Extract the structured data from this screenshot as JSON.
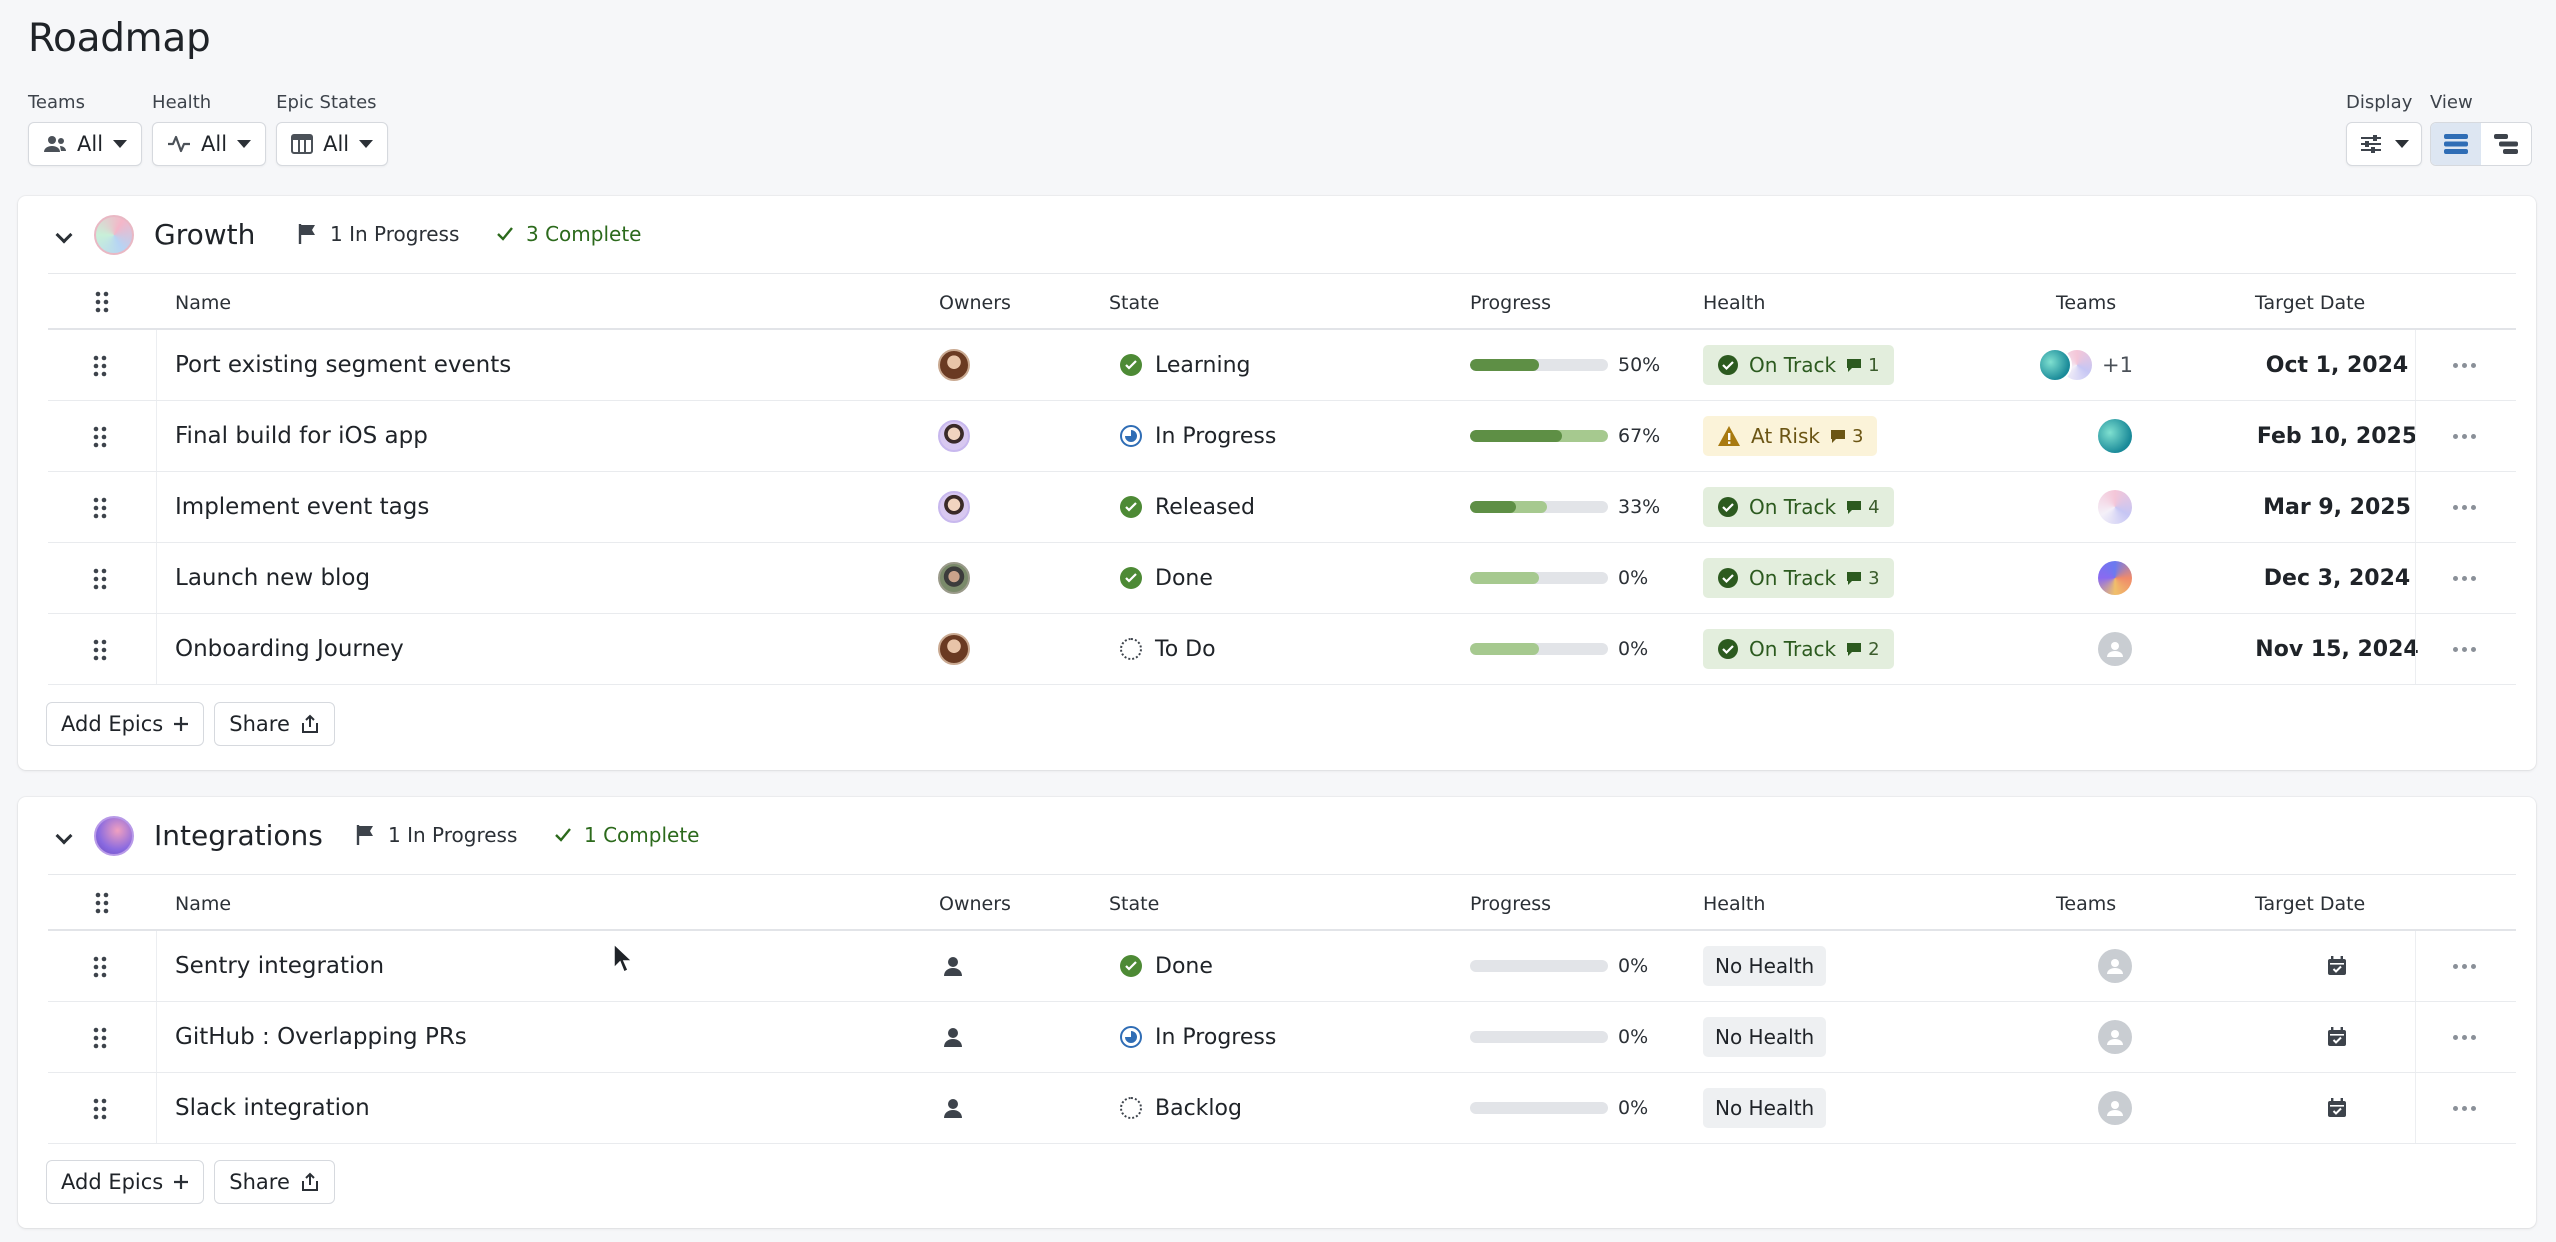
{
  "page": {
    "title": "Roadmap"
  },
  "filters": [
    {
      "label": "Teams",
      "value": "All",
      "icon": "teams-icon"
    },
    {
      "label": "Health",
      "value": "All",
      "icon": "pulse-icon"
    },
    {
      "label": "Epic States",
      "value": "All",
      "icon": "board-icon"
    }
  ],
  "controls": {
    "display_label": "Display",
    "view_label": "View"
  },
  "columns": {
    "name": "Name",
    "owners": "Owners",
    "state": "State",
    "progress": "Progress",
    "health": "Health",
    "teams": "Teams",
    "target_date": "Target Date"
  },
  "groups": [
    {
      "name": "Growth",
      "in_progress": "1 In Progress",
      "complete": "3 Complete",
      "epics": [
        {
          "name": "Port existing segment events",
          "owner": "woman-avatar",
          "state": "Learning",
          "state_icon": "check-circle-icon",
          "progress": 50,
          "progress_label": "50%",
          "health": "On Track",
          "comments": "1",
          "teams_extra": "+1",
          "target_date": "Oct 1, 2024"
        },
        {
          "name": "Final build for iOS app",
          "owner": "man-avatar",
          "state": "In Progress",
          "state_icon": "in-progress-icon",
          "progress": 67,
          "progress_label": "67%",
          "health": "At Risk",
          "comments": "3",
          "target_date": "Feb 10, 2025"
        },
        {
          "name": "Implement event tags",
          "owner": "man-avatar",
          "state": "Released",
          "state_icon": "check-circle-icon",
          "progress": 33,
          "progress_label": "33%",
          "health": "On Track",
          "comments": "4",
          "target_date": "Mar 9, 2025"
        },
        {
          "name": "Launch new blog",
          "owner": "man-photo-avatar",
          "state": "Done",
          "state_icon": "check-circle-icon",
          "progress": 0,
          "progress_label": "0%",
          "health": "On Track",
          "comments": "3",
          "target_date": "Dec 3, 2024"
        },
        {
          "name": "Onboarding Journey",
          "owner": "woman-avatar",
          "state": "To Do",
          "state_icon": "todo-icon",
          "progress": 0,
          "progress_label": "0%",
          "health": "On Track",
          "comments": "2",
          "target_date": "Nov 15, 2024"
        }
      ],
      "add_label": "Add Epics",
      "share_label": "Share"
    },
    {
      "name": "Integrations",
      "in_progress": "1 In Progress",
      "complete": "1 Complete",
      "epics": [
        {
          "name": "Sentry integration",
          "state": "Done",
          "state_icon": "check-circle-icon",
          "progress": 0,
          "progress_label": "0%",
          "health": "No Health"
        },
        {
          "name": "GitHub : Overlapping PRs",
          "state": "In Progress",
          "state_icon": "in-progress-icon",
          "progress": 0,
          "progress_label": "0%",
          "health": "No Health"
        },
        {
          "name": "Slack integration",
          "state": "Backlog",
          "state_icon": "todo-icon",
          "progress": 0,
          "progress_label": "0%",
          "health": "No Health"
        }
      ],
      "add_label": "Add Epics",
      "share_label": "Share"
    }
  ],
  "colors": {
    "on_track": "#e3eedd",
    "at_risk": "#fbf3d9",
    "progress_dark": "#5e8f45",
    "progress_light": "#a6c98f",
    "accent": "#2f6db5"
  }
}
